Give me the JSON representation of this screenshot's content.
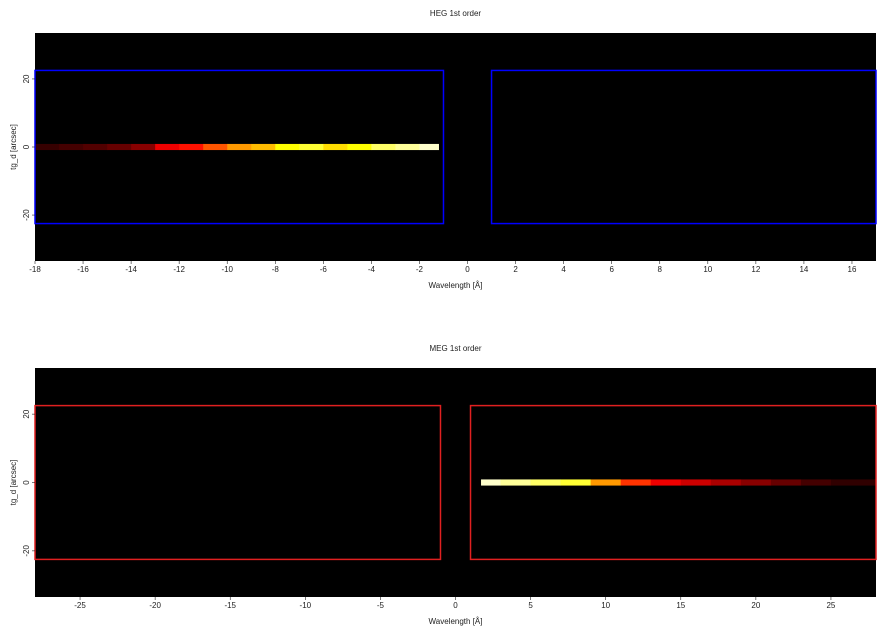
{
  "chart_data": [
    {
      "type": "spectrum-image",
      "title": "HEG 1st order",
      "xlabel": "Wavelength [Å]",
      "ylabel": "tg_d [arcsec]",
      "xlim": [
        -18,
        17
      ],
      "ylim": [
        -33.5,
        33.5
      ],
      "xticks": [
        -18,
        -16,
        -14,
        -12,
        -10,
        -8,
        -6,
        -4,
        -2,
        0,
        2,
        4,
        6,
        8,
        10,
        12,
        14,
        16
      ],
      "yticks": [
        -20,
        0,
        20
      ],
      "background": "#000000",
      "colormap": "hot",
      "streak": {
        "y": [
          -0.9,
          0.9
        ],
        "bins": [
          -18,
          -17,
          -16,
          -15,
          -14,
          -13,
          -12,
          -11,
          -10,
          -9,
          -8,
          -7,
          -6,
          -5,
          -4,
          -3,
          -2,
          -1.2
        ],
        "intensity": [
          0.08,
          0.1,
          0.12,
          0.15,
          0.2,
          0.35,
          0.4,
          0.5,
          0.6,
          0.65,
          0.75,
          0.8,
          0.7,
          0.75,
          0.85,
          0.9,
          0.95
        ]
      },
      "region_color": "#0000ff",
      "regions": [
        {
          "x": [
            -18,
            -1
          ],
          "y": [
            -22.5,
            22.5
          ]
        },
        {
          "x": [
            1,
            17
          ],
          "y": [
            -22.5,
            22.5
          ]
        }
      ]
    },
    {
      "type": "spectrum-image",
      "title": "MEG 1st order",
      "xlabel": "Wavelength [Å]",
      "ylabel": "tg_d [arcsec]",
      "xlim": [
        -28,
        28
      ],
      "ylim": [
        -33.5,
        33.5
      ],
      "xticks": [
        -25,
        -20,
        -15,
        -10,
        -5,
        0,
        5,
        10,
        15,
        20,
        25
      ],
      "yticks": [
        -20,
        0,
        20
      ],
      "background": "#000000",
      "colormap": "hot",
      "streak": {
        "y": [
          -0.9,
          0.9
        ],
        "bins": [
          1.7,
          3,
          5,
          7,
          9,
          11,
          13,
          15,
          17,
          19,
          21,
          23,
          25,
          28
        ],
        "intensity": [
          0.95,
          0.9,
          0.85,
          0.8,
          0.6,
          0.45,
          0.35,
          0.3,
          0.25,
          0.2,
          0.15,
          0.1,
          0.07
        ]
      },
      "region_color": "#e02020",
      "regions": [
        {
          "x": [
            -28,
            -1
          ],
          "y": [
            -22.5,
            22.5
          ]
        },
        {
          "x": [
            1,
            28
          ],
          "y": [
            -22.5,
            22.5
          ]
        }
      ]
    }
  ]
}
